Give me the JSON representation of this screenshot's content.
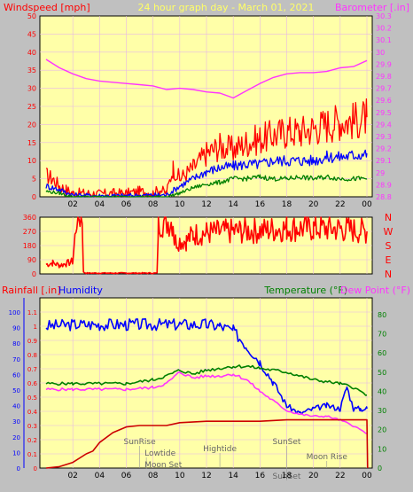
{
  "header": {
    "left_title": "Windspeed [mph]",
    "center_title": "24 hour graph day - March 01, 2021",
    "right_title": "Barometer [.in]"
  },
  "colors": {
    "plot_bg": "#ffffa8",
    "frame_bg": "#c0c0c0",
    "grid": "#e6b8e6",
    "red": "#ff0000",
    "blue": "#0000ff",
    "green": "#008000",
    "magenta": "#ff33ff",
    "title_yellow": "#ffff66"
  },
  "chart_data": [
    {
      "name": "wind-barometer",
      "type": "line",
      "title": "24 hour graph day - March 01, 2021",
      "ylabel": "Windspeed [mph]",
      "y2label": "Barometer [.in]",
      "ylim": [
        0,
        50
      ],
      "y2lim": [
        28.8,
        30.3
      ],
      "yticks": [
        "0",
        "5",
        "10",
        "15",
        "20",
        "25",
        "30",
        "35",
        "40",
        "45",
        "50"
      ],
      "y2ticks": [
        "28.8",
        "28.9",
        "29",
        "29.1",
        "29.2",
        "29.3",
        "29.4",
        "29.5",
        "29.6",
        "29.7",
        "29.8",
        "29.9",
        "30",
        "30.1",
        "30.2",
        "30.3"
      ],
      "xticks": [
        "02",
        "04",
        "06",
        "08",
        "10",
        "12",
        "14",
        "16",
        "18",
        "20",
        "22",
        "00"
      ],
      "grid": true,
      "series": [
        {
          "role": "gust",
          "color": "#ff0000",
          "axis": "y1",
          "points": [
            [
              0,
              6
            ],
            [
              0.5,
              5
            ],
            [
              1,
              3
            ],
            [
              1.5,
              2
            ],
            [
              2,
              1
            ],
            [
              3,
              1
            ],
            [
              4,
              0.8
            ],
            [
              5,
              1
            ],
            [
              6,
              1
            ],
            [
              7,
              1.5
            ],
            [
              8,
              1
            ],
            [
              8.5,
              2
            ],
            [
              9,
              1
            ],
            [
              9.5,
              8
            ],
            [
              10,
              5
            ],
            [
              11,
              8
            ],
            [
              12,
              12
            ],
            [
              13,
              14
            ],
            [
              14,
              13
            ],
            [
              15,
              15
            ],
            [
              16,
              16
            ],
            [
              17,
              17
            ],
            [
              18,
              18
            ],
            [
              19,
              18
            ],
            [
              20,
              19
            ],
            [
              21,
              20
            ],
            [
              22,
              21
            ],
            [
              23,
              21
            ],
            [
              24,
              22
            ]
          ]
        },
        {
          "role": "avg",
          "color": "#0000ff",
          "axis": "y1",
          "points": [
            [
              0,
              3
            ],
            [
              1,
              2
            ],
            [
              2,
              0.5
            ],
            [
              4,
              0.3
            ],
            [
              6,
              0.3
            ],
            [
              8,
              0.5
            ],
            [
              9,
              0.5
            ],
            [
              10,
              3
            ],
            [
              11,
              5
            ],
            [
              12,
              7
            ],
            [
              13,
              8
            ],
            [
              14,
              8.5
            ],
            [
              15,
              9
            ],
            [
              16,
              9
            ],
            [
              17,
              10
            ],
            [
              18,
              10
            ],
            [
              19,
              10
            ],
            [
              20,
              10
            ],
            [
              21,
              11
            ],
            [
              22,
              11
            ],
            [
              23,
              11.5
            ],
            [
              24,
              12
            ]
          ]
        },
        {
          "role": "low",
          "color": "#008000",
          "axis": "y1",
          "points": [
            [
              0,
              1.5
            ],
            [
              1,
              1
            ],
            [
              2,
              0
            ],
            [
              8,
              0
            ],
            [
              9,
              0
            ],
            [
              10,
              1
            ],
            [
              11,
              2.5
            ],
            [
              12,
              3.5
            ],
            [
              13,
              4
            ],
            [
              14,
              5
            ],
            [
              15,
              5
            ],
            [
              16,
              5.5
            ],
            [
              17,
              5
            ],
            [
              18,
              5
            ],
            [
              19,
              5.5
            ],
            [
              20,
              5
            ],
            [
              21,
              5.5
            ],
            [
              22,
              5
            ],
            [
              23,
              5
            ],
            [
              24,
              5
            ]
          ]
        },
        {
          "role": "barometer",
          "color": "#ff33ff",
          "axis": "y2",
          "points": [
            [
              0,
              29.94
            ],
            [
              1,
              29.87
            ],
            [
              2,
              29.82
            ],
            [
              3,
              29.78
            ],
            [
              4,
              29.76
            ],
            [
              5,
              29.75
            ],
            [
              6,
              29.74
            ],
            [
              7,
              29.73
            ],
            [
              8,
              29.72
            ],
            [
              9,
              29.69
            ],
            [
              10,
              29.7
            ],
            [
              11,
              29.69
            ],
            [
              12,
              29.67
            ],
            [
              13,
              29.66
            ],
            [
              14,
              29.62
            ],
            [
              15,
              29.68
            ],
            [
              16,
              29.74
            ],
            [
              17,
              29.79
            ],
            [
              18,
              29.82
            ],
            [
              19,
              29.83
            ],
            [
              20,
              29.83
            ],
            [
              21,
              29.84
            ],
            [
              22,
              29.87
            ],
            [
              23,
              29.88
            ],
            [
              24,
              29.93
            ]
          ]
        }
      ]
    },
    {
      "name": "wind-direction",
      "type": "line",
      "ylim": [
        0,
        360
      ],
      "yticks": [
        "0",
        "90",
        "180",
        "270",
        "360"
      ],
      "direction_labels": [
        "N",
        "W",
        "S",
        "E",
        "N"
      ],
      "series": [
        {
          "role": "direction",
          "color": "#ff0000",
          "points": [
            [
              0,
              60
            ],
            [
              0.5,
              70
            ],
            [
              1,
              55
            ],
            [
              1.5,
              65
            ],
            [
              2,
              80
            ],
            [
              2.3,
              360
            ],
            [
              2.7,
              360
            ],
            [
              2.8,
              10
            ],
            [
              3,
              5
            ],
            [
              4,
              5
            ],
            [
              6,
              5
            ],
            [
              8,
              5
            ],
            [
              8.3,
              5
            ],
            [
              8.4,
              330
            ],
            [
              9.5,
              330
            ],
            [
              9.6,
              210
            ],
            [
              10.5,
              210
            ],
            [
              11,
              250
            ],
            [
              12,
              260
            ],
            [
              14,
              270
            ],
            [
              16,
              275
            ],
            [
              18,
              290
            ],
            [
              20,
              290
            ],
            [
              22,
              285
            ],
            [
              24,
              270
            ]
          ]
        }
      ]
    },
    {
      "name": "rain-humidity-temperature",
      "type": "line",
      "ylabel": "Rainfall [.in]",
      "humidity_label": "Humidity",
      "temperature_label": "Temperature (°F)",
      "dewpoint_label": "Dew Point (°F)",
      "ylim": [
        0,
        1.2
      ],
      "yticks": [
        "0",
        "0.1",
        "0.2",
        "0.3",
        "0.4",
        "0.5",
        "0.6",
        "0.7",
        "0.8",
        "0.9",
        "1",
        "1.1"
      ],
      "humidity_lim": [
        0,
        100
      ],
      "humidity_ticks": [
        "0",
        "10",
        "20",
        "30",
        "40",
        "50",
        "60",
        "70",
        "80",
        "90",
        "100"
      ],
      "temp_lim": [
        0,
        85
      ],
      "temp_ticks": [
        "0",
        "10",
        "20",
        "30",
        "40",
        "50",
        "60",
        "70",
        "80"
      ],
      "events": [
        "SunRise",
        "Lowtide",
        "Moon Set",
        "Hightide",
        "SunSet",
        "SunSet",
        "Moon Rise"
      ],
      "series": [
        {
          "role": "humidity",
          "color": "#0000ff",
          "axis": "humidity",
          "points": [
            [
              0,
              91
            ],
            [
              2,
              92
            ],
            [
              4,
              92
            ],
            [
              6,
              92
            ],
            [
              8,
              92
            ],
            [
              10,
              92
            ],
            [
              12,
              92
            ],
            [
              13,
              91
            ],
            [
              14,
              88
            ],
            [
              15,
              78
            ],
            [
              16,
              68
            ],
            [
              17,
              55
            ],
            [
              18,
              40
            ],
            [
              19,
              35
            ],
            [
              20,
              38
            ],
            [
              21,
              40
            ],
            [
              22,
              38
            ],
            [
              22.5,
              52
            ],
            [
              23,
              38
            ],
            [
              23.5,
              38
            ],
            [
              24,
              38
            ]
          ]
        },
        {
          "role": "temperature",
          "color": "#008000",
          "axis": "temp",
          "points": [
            [
              0,
              44
            ],
            [
              2,
              44
            ],
            [
              4,
              44
            ],
            [
              6,
              44
            ],
            [
              8,
              46
            ],
            [
              9,
              48
            ],
            [
              10,
              51
            ],
            [
              11,
              49
            ],
            [
              12,
              51
            ],
            [
              13,
              52
            ],
            [
              14,
              53
            ],
            [
              15,
              53
            ],
            [
              16,
              52
            ],
            [
              18,
              50
            ],
            [
              19,
              48
            ],
            [
              20,
              46
            ],
            [
              22,
              44
            ],
            [
              23,
              42
            ],
            [
              24,
              38
            ]
          ]
        },
        {
          "role": "dewpoint",
          "color": "#ff33ff",
          "axis": "temp",
          "points": [
            [
              0,
              41
            ],
            [
              2,
              41
            ],
            [
              4,
              41
            ],
            [
              6,
              41
            ],
            [
              8,
              42
            ],
            [
              9,
              44
            ],
            [
              10,
              50
            ],
            [
              11,
              47
            ],
            [
              12,
              48
            ],
            [
              13,
              48
            ],
            [
              14,
              49
            ],
            [
              15,
              46
            ],
            [
              16,
              40
            ],
            [
              17,
              35
            ],
            [
              18,
              30
            ],
            [
              19,
              28
            ],
            [
              20,
              27
            ],
            [
              21,
              27
            ],
            [
              22,
              25
            ],
            [
              23,
              22
            ],
            [
              24,
              18
            ]
          ]
        },
        {
          "role": "rainfall",
          "color": "#cc0000",
          "axis": "y1",
          "points": [
            [
              0,
              0
            ],
            [
              1,
              0.01
            ],
            [
              2,
              0.04
            ],
            [
              3,
              0.1
            ],
            [
              3.5,
              0.12
            ],
            [
              4,
              0.18
            ],
            [
              5,
              0.25
            ],
            [
              6,
              0.29
            ],
            [
              7,
              0.3
            ],
            [
              9,
              0.3
            ],
            [
              10,
              0.32
            ],
            [
              12,
              0.33
            ],
            [
              14,
              0.33
            ],
            [
              16,
              0.33
            ],
            [
              18,
              0.34
            ],
            [
              20,
              0.34
            ],
            [
              22,
              0.34
            ],
            [
              24,
              0.34
            ],
            [
              24.05,
              0
            ]
          ]
        }
      ]
    }
  ]
}
